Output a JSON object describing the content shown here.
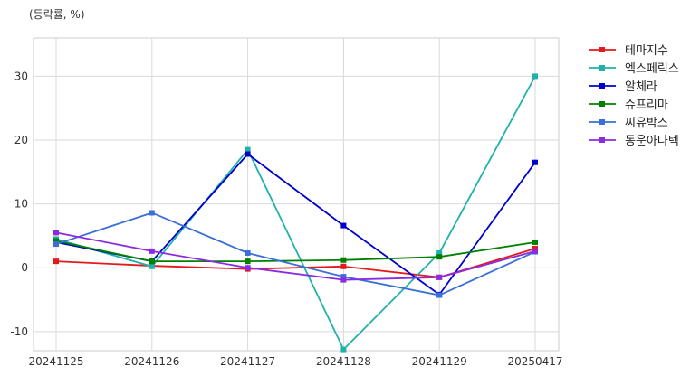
{
  "chart_data": {
    "type": "line",
    "unit_label": "(등락률, %)",
    "categories": [
      "20241125",
      "20241126",
      "20241127",
      "20241128",
      "20241129",
      "20250417"
    ],
    "ylim": [
      -13,
      36
    ],
    "yticks": [
      -10,
      0,
      10,
      20,
      30
    ],
    "grid": true,
    "legend_position": "right",
    "series": [
      {
        "name": "테마지수",
        "color": "#e31a1c",
        "values": [
          1.0,
          0.3,
          -0.2,
          0.2,
          -1.5,
          3.0
        ]
      },
      {
        "name": "엑스페릭스",
        "color": "#20b2aa",
        "values": [
          4.5,
          0.2,
          18.5,
          -12.8,
          2.3,
          30.0
        ]
      },
      {
        "name": "알체라",
        "color": "#0000cd",
        "values": [
          4.0,
          1.0,
          17.8,
          6.6,
          -4.2,
          16.5
        ]
      },
      {
        "name": "슈프리마",
        "color": "#008000",
        "values": [
          4.2,
          1.0,
          1.0,
          1.2,
          1.7,
          4.0
        ]
      },
      {
        "name": "씨유박스",
        "color": "#3a6fd8",
        "values": [
          3.7,
          8.6,
          2.3,
          -1.4,
          -4.3,
          2.5
        ]
      },
      {
        "name": "동운아나텍",
        "color": "#8a2be2",
        "values": [
          5.5,
          2.6,
          0.0,
          -1.9,
          -1.5,
          2.6
        ]
      }
    ]
  }
}
